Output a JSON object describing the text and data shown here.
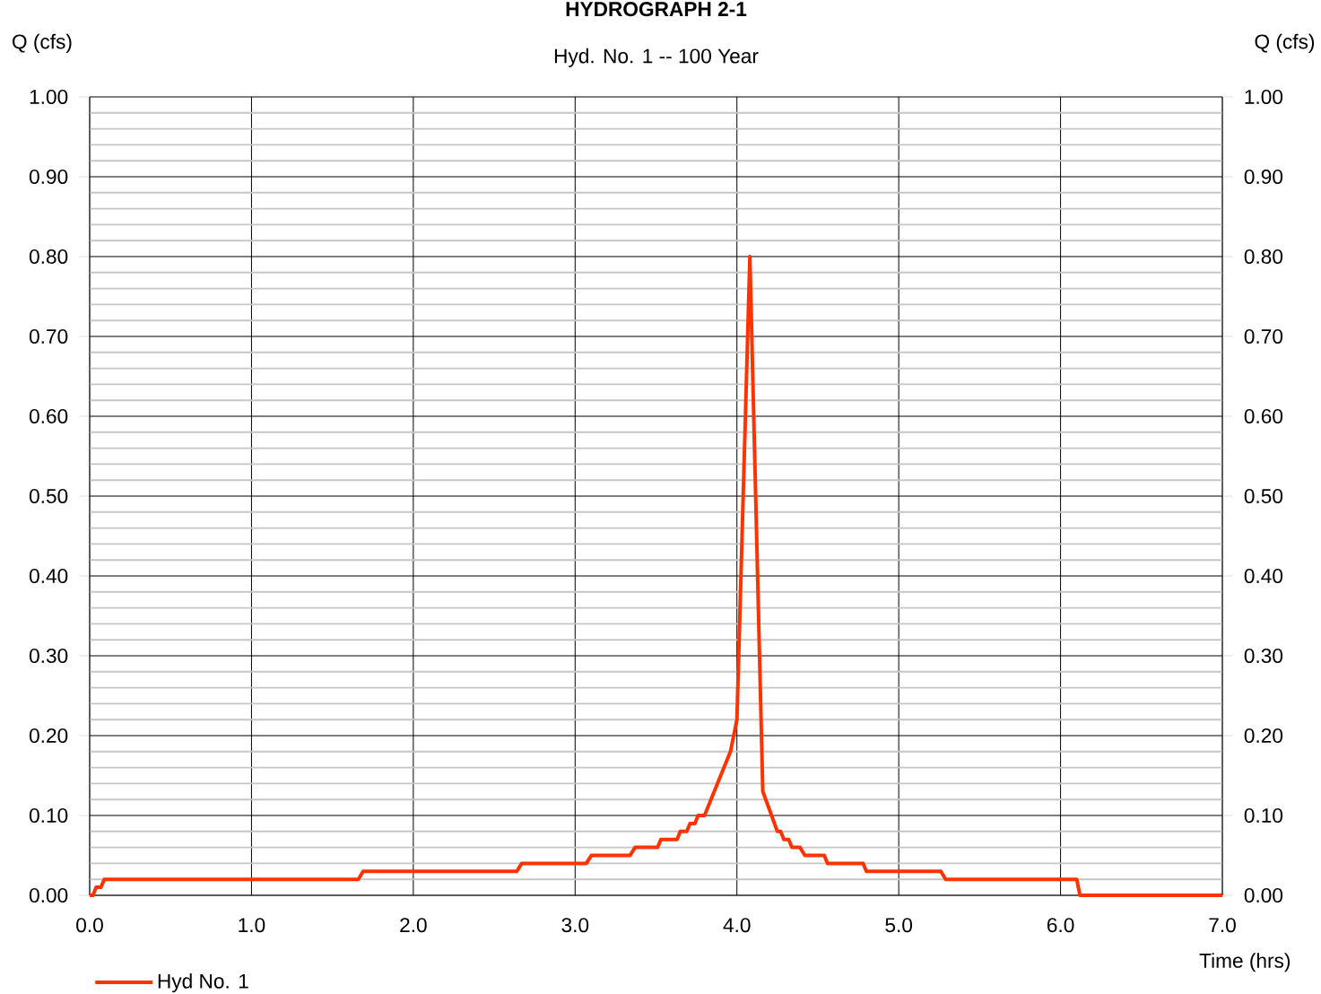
{
  "chart_data": {
    "type": "line",
    "title": "HYDROGRAPH 2-1",
    "subtitle": "Hyd. No. 1 -- 100 Year",
    "xlabel": "Time (hrs)",
    "ylabel": "Q (cfs)",
    "y2label": "Q (cfs)",
    "xlim": [
      0,
      7
    ],
    "ylim": [
      0,
      1
    ],
    "y2lim": [
      0,
      1
    ],
    "xticks": [
      {
        "value": 0,
        "label": "0.0"
      },
      {
        "value": 1,
        "label": "1.0"
      },
      {
        "value": 2,
        "label": "2.0"
      },
      {
        "value": 3,
        "label": "3.0"
      },
      {
        "value": 4,
        "label": "4.0"
      },
      {
        "value": 5,
        "label": "5.0"
      },
      {
        "value": 6,
        "label": "6.0"
      },
      {
        "value": 7,
        "label": "7.0"
      }
    ],
    "yticks": [
      {
        "value": 0,
        "label": "0.00"
      },
      {
        "value": 0.1,
        "label": "0.10"
      },
      {
        "value": 0.2,
        "label": "0.20"
      },
      {
        "value": 0.3,
        "label": "0.30"
      },
      {
        "value": 0.4,
        "label": "0.40"
      },
      {
        "value": 0.5,
        "label": "0.50"
      },
      {
        "value": 0.6,
        "label": "0.60"
      },
      {
        "value": 0.7,
        "label": "0.70"
      },
      {
        "value": 0.8,
        "label": "0.80"
      },
      {
        "value": 0.9,
        "label": "0.90"
      },
      {
        "value": 1,
        "label": "1.00"
      }
    ],
    "y2ticks": [
      {
        "value": 0,
        "label": "0.00"
      },
      {
        "value": 0.1,
        "label": "0.10"
      },
      {
        "value": 0.2,
        "label": "0.20"
      },
      {
        "value": 0.3,
        "label": "0.30"
      },
      {
        "value": 0.4,
        "label": "0.40"
      },
      {
        "value": 0.5,
        "label": "0.50"
      },
      {
        "value": 0.6,
        "label": "0.60"
      },
      {
        "value": 0.7,
        "label": "0.70"
      },
      {
        "value": 0.8,
        "label": "0.80"
      },
      {
        "value": 0.9,
        "label": "0.90"
      },
      {
        "value": 1,
        "label": "1.00"
      }
    ],
    "grid": true,
    "legend": "bottom left",
    "marker": "none",
    "line_style": "solid",
    "series": [
      {
        "name": "Hyd No. 1",
        "color": "#ff3300",
        "x": [
          0,
          0.02,
          0.04,
          0.07,
          0.09,
          1.66,
          1.69,
          2.64,
          2.67,
          3.07,
          3.1,
          3.34,
          3.37,
          3.51,
          3.53,
          3.63,
          3.65,
          3.69,
          3.71,
          3.74,
          3.76,
          3.8,
          3.82,
          3.92,
          3.96,
          3.98,
          4.0,
          4.08,
          4.16,
          4.25,
          4.27,
          4.29,
          4.32,
          4.34,
          4.39,
          4.42,
          4.54,
          4.56,
          4.78,
          4.8,
          5.26,
          5.29,
          6.1,
          6.12,
          7.0
        ],
        "values": [
          0,
          0,
          0.01,
          0.01,
          0.02,
          0.02,
          0.03,
          0.03,
          0.04,
          0.04,
          0.05,
          0.05,
          0.06,
          0.06,
          0.07,
          0.07,
          0.08,
          0.08,
          0.09,
          0.09,
          0.1,
          0.1,
          0.11,
          0.16,
          0.18,
          0.2,
          0.22,
          0.8,
          0.13,
          0.08,
          0.08,
          0.07,
          0.07,
          0.06,
          0.06,
          0.05,
          0.05,
          0.04,
          0.04,
          0.03,
          0.03,
          0.02,
          0.02,
          0,
          0
        ]
      }
    ]
  }
}
